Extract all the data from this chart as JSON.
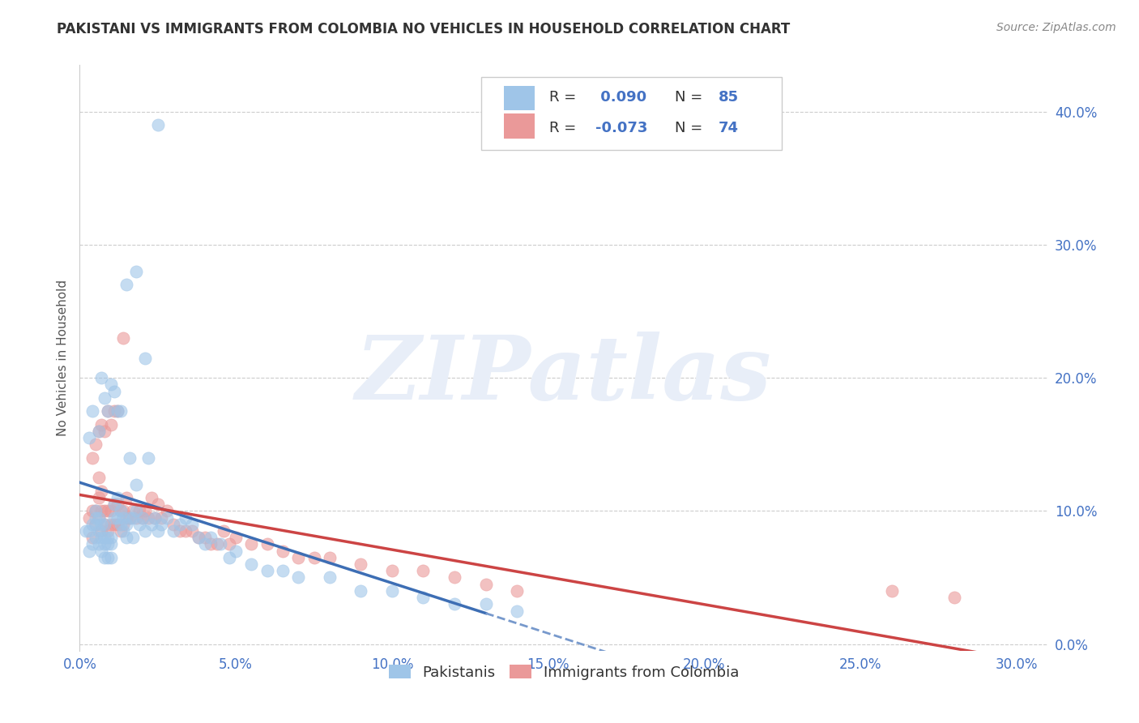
{
  "title": "PAKISTANI VS IMMIGRANTS FROM COLOMBIA NO VEHICLES IN HOUSEHOLD CORRELATION CHART",
  "source": "Source: ZipAtlas.com",
  "ylabel": "No Vehicles in Household",
  "xlim": [
    0.0,
    0.31
  ],
  "ylim": [
    -0.005,
    0.435
  ],
  "xticks": [
    0.0,
    0.05,
    0.1,
    0.15,
    0.2,
    0.25,
    0.3
  ],
  "yticks": [
    0.0,
    0.1,
    0.2,
    0.3,
    0.4
  ],
  "xtick_labels": [
    "0.0%",
    "5.0%",
    "10.0%",
    "15.0%",
    "20.0%",
    "25.0%",
    "30.0%"
  ],
  "ytick_labels": [
    "0.0%",
    "10.0%",
    "20.0%",
    "30.0%",
    "40.0%"
  ],
  "blue_color": "#9fc5e8",
  "pink_color": "#ea9999",
  "blue_line_color": "#3d6eb4",
  "pink_line_color": "#cc4444",
  "dashed_line_color": "#7799cc",
  "R_blue": 0.09,
  "N_blue": 85,
  "R_pink": -0.073,
  "N_pink": 74,
  "legend_label_blue": "Pakistanis",
  "legend_label_pink": "Immigrants from Colombia",
  "pakistani_x": [
    0.002,
    0.003,
    0.003,
    0.004,
    0.004,
    0.005,
    0.005,
    0.005,
    0.005,
    0.006,
    0.006,
    0.006,
    0.007,
    0.007,
    0.007,
    0.008,
    0.008,
    0.008,
    0.008,
    0.009,
    0.009,
    0.009,
    0.01,
    0.01,
    0.01,
    0.011,
    0.011,
    0.012,
    0.012,
    0.013,
    0.013,
    0.014,
    0.014,
    0.015,
    0.015,
    0.016,
    0.016,
    0.017,
    0.017,
    0.018,
    0.018,
    0.019,
    0.02,
    0.021,
    0.022,
    0.023,
    0.024,
    0.025,
    0.026,
    0.028,
    0.03,
    0.032,
    0.034,
    0.036,
    0.038,
    0.04,
    0.042,
    0.045,
    0.048,
    0.05,
    0.055,
    0.06,
    0.065,
    0.07,
    0.08,
    0.09,
    0.1,
    0.11,
    0.12,
    0.13,
    0.14,
    0.003,
    0.004,
    0.006,
    0.007,
    0.008,
    0.009,
    0.01,
    0.011,
    0.012,
    0.013,
    0.015,
    0.018,
    0.021,
    0.025
  ],
  "pakistani_y": [
    0.085,
    0.07,
    0.085,
    0.075,
    0.09,
    0.08,
    0.09,
    0.095,
    0.1,
    0.075,
    0.085,
    0.095,
    0.07,
    0.08,
    0.09,
    0.065,
    0.075,
    0.08,
    0.09,
    0.065,
    0.075,
    0.08,
    0.065,
    0.075,
    0.08,
    0.095,
    0.105,
    0.095,
    0.11,
    0.09,
    0.1,
    0.085,
    0.095,
    0.08,
    0.09,
    0.095,
    0.14,
    0.08,
    0.095,
    0.1,
    0.12,
    0.09,
    0.095,
    0.085,
    0.14,
    0.09,
    0.095,
    0.085,
    0.09,
    0.095,
    0.085,
    0.09,
    0.095,
    0.09,
    0.08,
    0.075,
    0.08,
    0.075,
    0.065,
    0.07,
    0.06,
    0.055,
    0.055,
    0.05,
    0.05,
    0.04,
    0.04,
    0.035,
    0.03,
    0.03,
    0.025,
    0.155,
    0.175,
    0.16,
    0.2,
    0.185,
    0.175,
    0.195,
    0.19,
    0.175,
    0.175,
    0.27,
    0.28,
    0.215,
    0.39
  ],
  "colombia_x": [
    0.003,
    0.004,
    0.004,
    0.005,
    0.005,
    0.006,
    0.006,
    0.006,
    0.007,
    0.007,
    0.007,
    0.008,
    0.008,
    0.009,
    0.009,
    0.01,
    0.01,
    0.011,
    0.011,
    0.012,
    0.012,
    0.013,
    0.013,
    0.014,
    0.014,
    0.015,
    0.015,
    0.016,
    0.017,
    0.018,
    0.019,
    0.02,
    0.021,
    0.022,
    0.023,
    0.024,
    0.025,
    0.026,
    0.028,
    0.03,
    0.032,
    0.034,
    0.036,
    0.038,
    0.04,
    0.042,
    0.044,
    0.046,
    0.048,
    0.05,
    0.055,
    0.06,
    0.065,
    0.07,
    0.075,
    0.08,
    0.09,
    0.1,
    0.11,
    0.12,
    0.13,
    0.14,
    0.26,
    0.28,
    0.004,
    0.005,
    0.006,
    0.007,
    0.008,
    0.009,
    0.01,
    0.011,
    0.012,
    0.014
  ],
  "colombia_y": [
    0.095,
    0.08,
    0.1,
    0.09,
    0.1,
    0.095,
    0.11,
    0.125,
    0.085,
    0.1,
    0.115,
    0.09,
    0.1,
    0.085,
    0.1,
    0.09,
    0.1,
    0.09,
    0.105,
    0.09,
    0.105,
    0.085,
    0.1,
    0.09,
    0.1,
    0.095,
    0.11,
    0.095,
    0.1,
    0.095,
    0.1,
    0.095,
    0.1,
    0.095,
    0.11,
    0.095,
    0.105,
    0.095,
    0.1,
    0.09,
    0.085,
    0.085,
    0.085,
    0.08,
    0.08,
    0.075,
    0.075,
    0.085,
    0.075,
    0.08,
    0.075,
    0.075,
    0.07,
    0.065,
    0.065,
    0.065,
    0.06,
    0.055,
    0.055,
    0.05,
    0.045,
    0.04,
    0.04,
    0.035,
    0.14,
    0.15,
    0.16,
    0.165,
    0.16,
    0.175,
    0.165,
    0.175,
    0.175,
    0.23
  ],
  "watermark": "ZIPatlas",
  "watermark_color": "#e8eef8",
  "background_color": "#ffffff",
  "grid_color": "#cccccc"
}
